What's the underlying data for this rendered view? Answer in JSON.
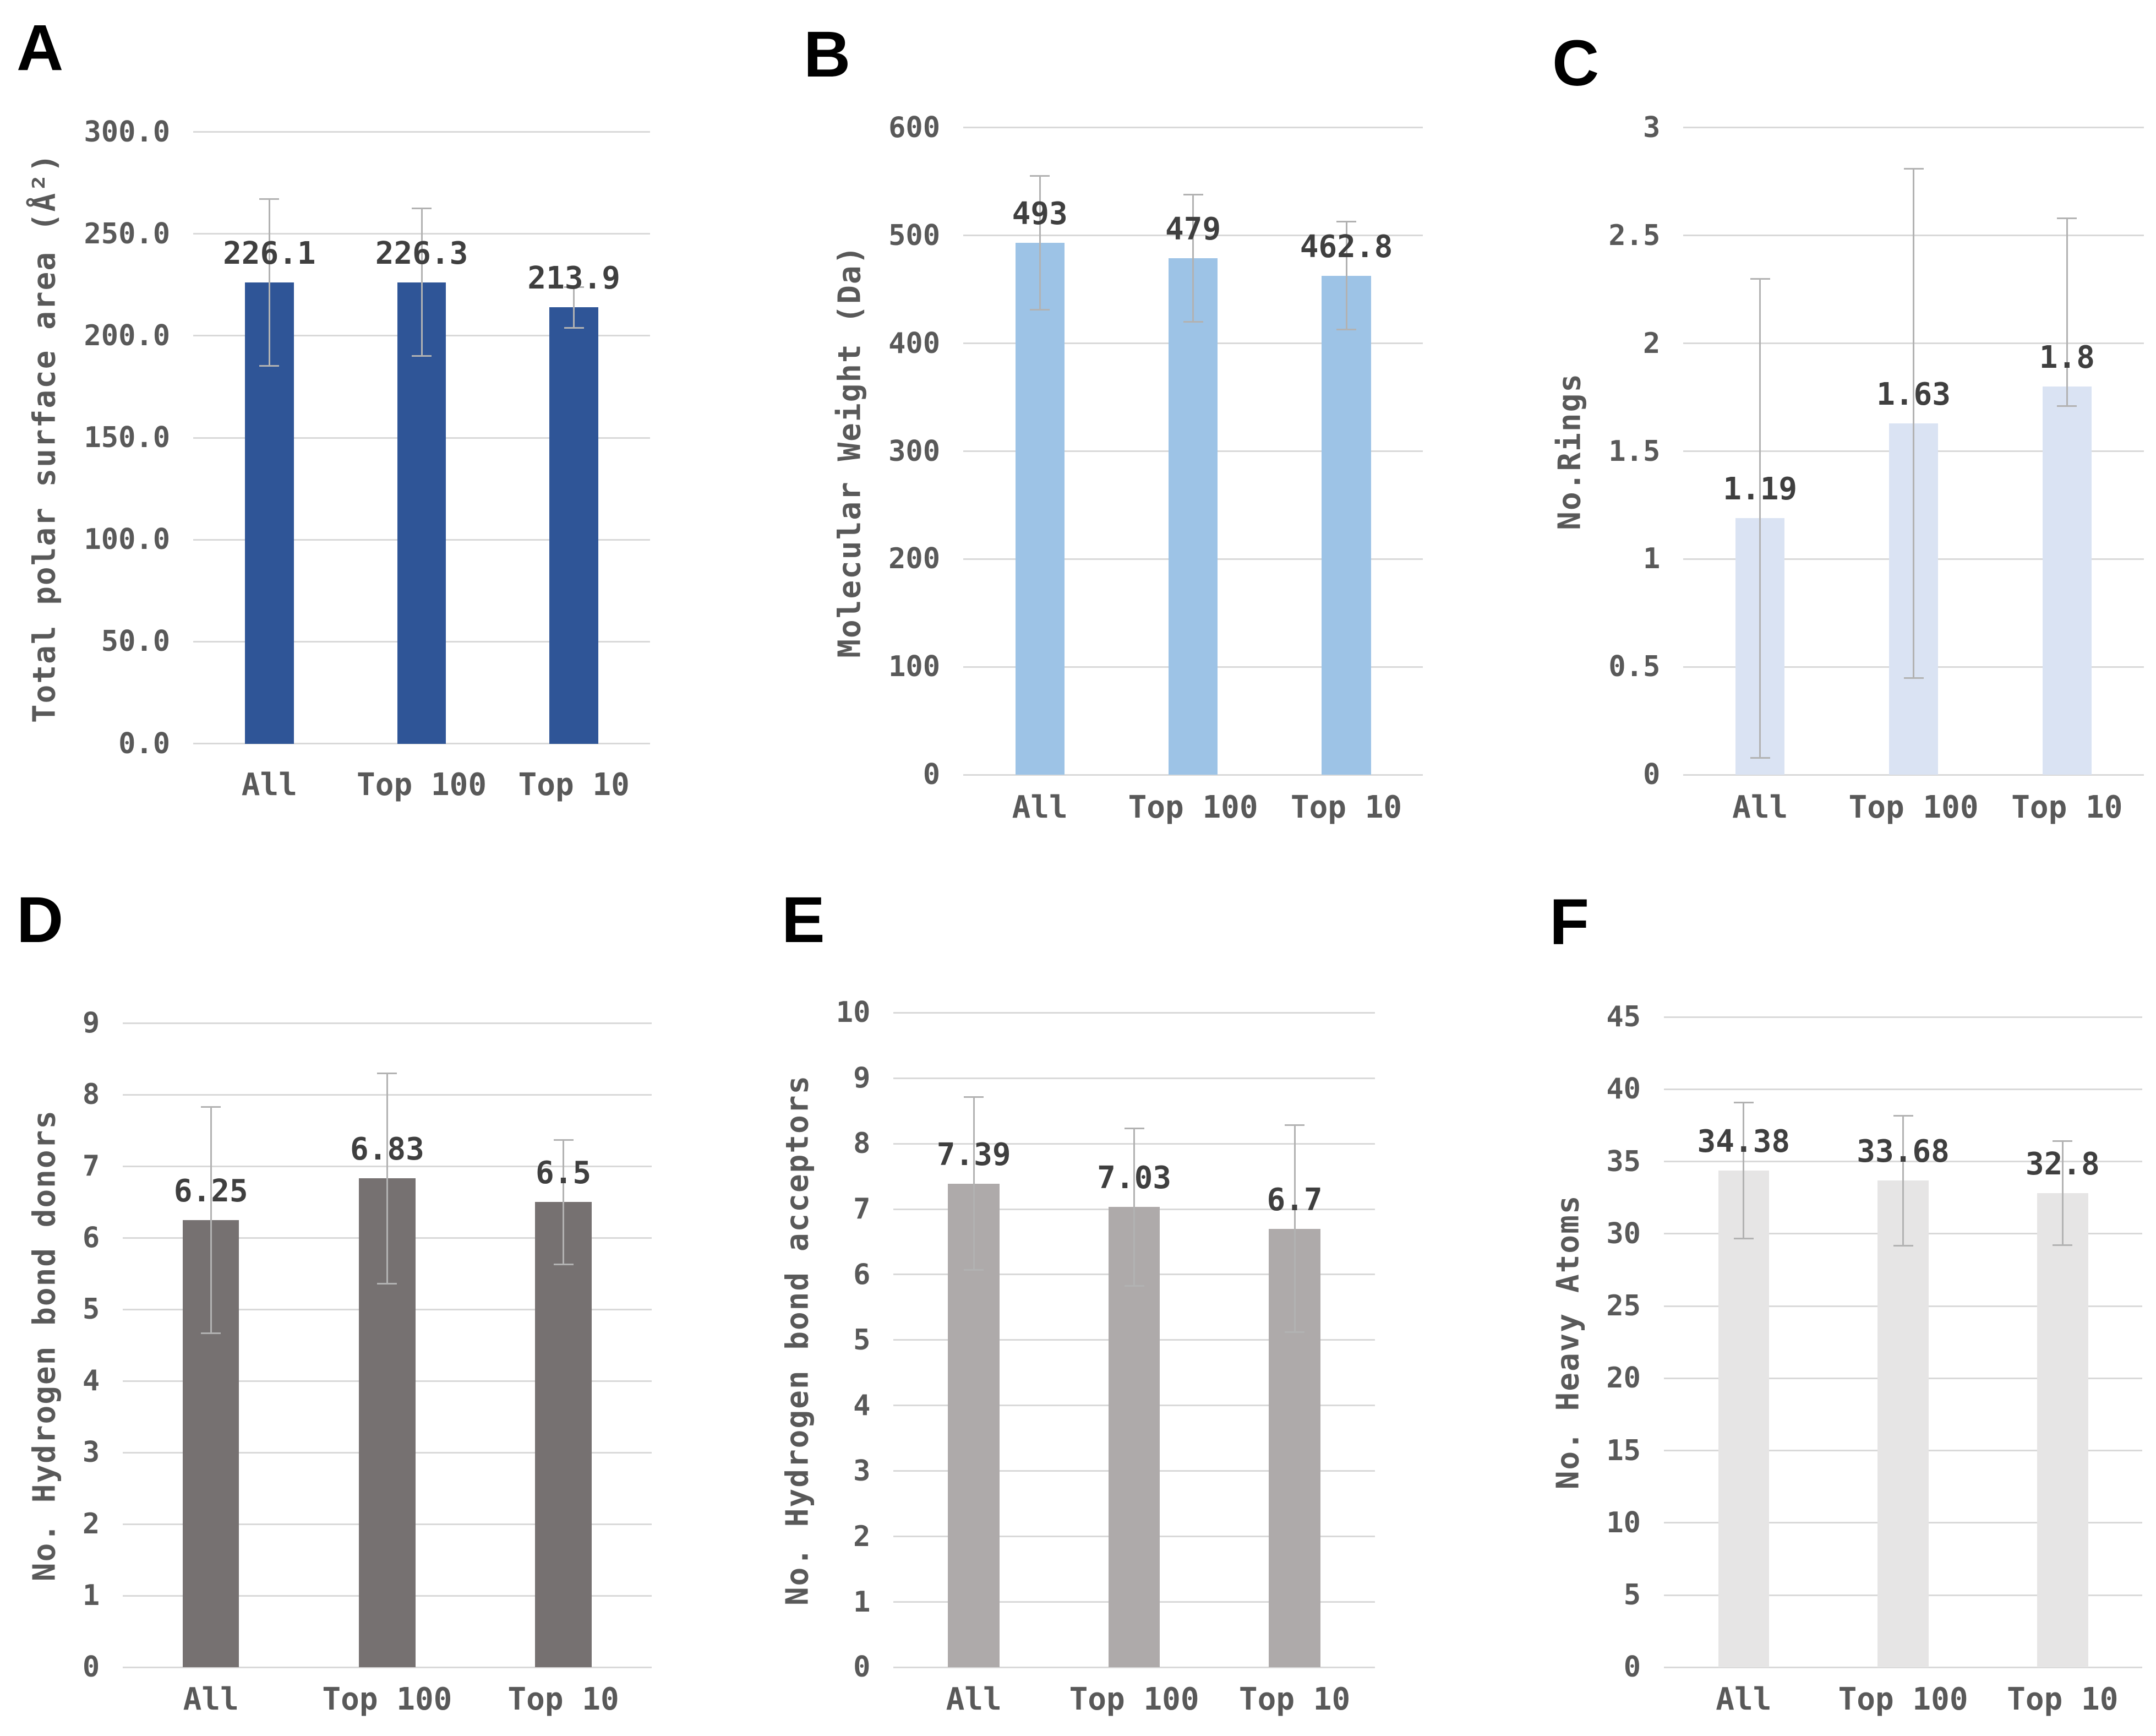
{
  "figure": {
    "background": "#ffffff",
    "description": "Six-panel bar chart figure (A-F) comparing physicochemical properties for All, Top 100 and Top 10 compound sets"
  },
  "styles": {
    "grid_color": "#D9D9D9",
    "error_bar_color": "#B2B2B2",
    "tick_text_color": "#595959",
    "value_text_color": "#3F3F3F",
    "letter_color": "#000000"
  },
  "chart_data": [
    {
      "id": "A",
      "type": "bar",
      "panel_label": "A",
      "ylabel": "Total polar surface area (Å²)",
      "xlabel": "",
      "ylim": [
        0,
        300
      ],
      "grid": true,
      "legend": "none",
      "categories": [
        "All",
        "Top 100",
        "Top 10"
      ],
      "values": [
        226.1,
        226.3,
        213.9
      ],
      "value_labels": [
        "226.1",
        "226.3",
        "213.9"
      ],
      "error_low": [
        185.2,
        190.1,
        203.9
      ],
      "error_high": [
        267.0,
        262.5,
        223.9
      ],
      "yticks": [
        300,
        250,
        200,
        150,
        100,
        50,
        0
      ],
      "ytick_labels": [
        "300.0",
        "250.0",
        "200.0",
        "150.0",
        "100.0",
        "50.0",
        "0.0"
      ],
      "bar_color": "#2F5597"
    },
    {
      "id": "B",
      "type": "bar",
      "panel_label": "B",
      "ylabel": "Molecular Weight (Da)",
      "xlabel": "",
      "ylim": [
        0,
        600
      ],
      "grid": true,
      "legend": "none",
      "categories": [
        "All",
        "Top 100",
        "Top 10"
      ],
      "values": [
        493,
        479,
        462.8
      ],
      "value_labels": [
        "493",
        "479",
        "462.8"
      ],
      "error_low": [
        431,
        420,
        412.6
      ],
      "error_high": [
        555,
        538,
        513
      ],
      "yticks": [
        600,
        500,
        400,
        300,
        200,
        100,
        0
      ],
      "ytick_labels": [
        "600",
        "500",
        "400",
        "300",
        "200",
        "100",
        "0"
      ],
      "bar_color": "#9DC3E6"
    },
    {
      "id": "C",
      "type": "bar",
      "panel_label": "C",
      "ylabel": "No.Rings",
      "xlabel": "",
      "ylim": [
        0,
        3
      ],
      "grid": true,
      "legend": "none",
      "categories": [
        "All",
        "Top 100",
        "Top 10"
      ],
      "values": [
        1.19,
        1.63,
        1.8
      ],
      "value_labels": [
        "1.19",
        "1.63",
        "1.8"
      ],
      "error_low": [
        0.08,
        0.45,
        1.71
      ],
      "error_high": [
        2.3,
        2.81,
        2.58
      ],
      "yticks": [
        3,
        2.5,
        2,
        1.5,
        1,
        0.5,
        0
      ],
      "ytick_labels": [
        "3",
        "2.5",
        "2",
        "1.5",
        "1",
        "0.5",
        "0"
      ],
      "bar_color": "#DAE3F3"
    },
    {
      "id": "D",
      "type": "bar",
      "panel_label": "D",
      "ylabel": "No. Hydrogen bond donors",
      "xlabel": "",
      "ylim": [
        0,
        9
      ],
      "grid": true,
      "legend": "none",
      "categories": [
        "All",
        "Top 100",
        "Top 10"
      ],
      "values": [
        6.25,
        6.83,
        6.5
      ],
      "value_labels": [
        "6.25",
        "6.83",
        "6.5"
      ],
      "error_low": [
        4.67,
        5.36,
        5.63
      ],
      "error_high": [
        7.83,
        8.3,
        7.37
      ],
      "yticks": [
        9,
        8,
        7,
        6,
        5,
        4,
        3,
        2,
        1,
        0
      ],
      "ytick_labels": [
        "9",
        "8",
        "7",
        "6",
        "5",
        "4",
        "3",
        "2",
        "1",
        "0"
      ],
      "bar_color": "#767171"
    },
    {
      "id": "E",
      "type": "bar",
      "panel_label": "E",
      "ylabel": "No. Hydrogen bond acceptors",
      "xlabel": "",
      "ylim": [
        0,
        10
      ],
      "grid": true,
      "legend": "none",
      "categories": [
        "All",
        "Top 100",
        "Top 10"
      ],
      "values": [
        7.39,
        7.03,
        6.7
      ],
      "value_labels": [
        "7.39",
        "7.03",
        "6.7"
      ],
      "error_low": [
        6.07,
        5.83,
        5.12
      ],
      "error_high": [
        8.71,
        8.23,
        8.28
      ],
      "yticks": [
        10,
        9,
        8,
        7,
        6,
        5,
        4,
        3,
        2,
        1,
        0
      ],
      "ytick_labels": [
        "10",
        "9",
        "8",
        "7",
        "6",
        "5",
        "4",
        "3",
        "2",
        "1",
        "0"
      ],
      "bar_color": "#AEAAAA"
    },
    {
      "id": "F",
      "type": "bar",
      "panel_label": "F",
      "ylabel": "No. Heavy Atoms",
      "xlabel": "",
      "ylim": [
        0,
        45
      ],
      "grid": true,
      "legend": "none",
      "categories": [
        "All",
        "Top 100",
        "Top 10"
      ],
      "values": [
        34.38,
        33.68,
        32.8
      ],
      "value_labels": [
        "34.38",
        "33.68",
        "32.8"
      ],
      "error_low": [
        29.68,
        29.18,
        29.2
      ],
      "error_high": [
        39.08,
        38.18,
        36.4
      ],
      "yticks": [
        45,
        40,
        35,
        30,
        25,
        20,
        15,
        10,
        5,
        0
      ],
      "ytick_labels": [
        "45",
        "40",
        "35",
        "30",
        "25",
        "20",
        "15",
        "10",
        "5",
        "0"
      ],
      "bar_color": "#E6E5E5"
    }
  ]
}
